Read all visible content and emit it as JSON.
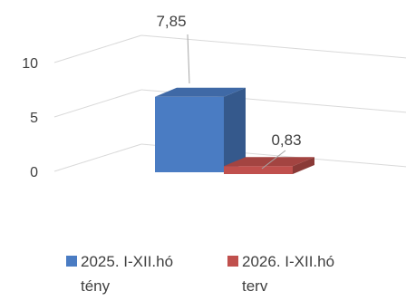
{
  "chart_data": {
    "type": "bar",
    "style": "3d-clustered-column",
    "title": "",
    "ylim": [
      0,
      10
    ],
    "y_ticks": [
      "0",
      "5",
      "10"
    ],
    "grid": true,
    "legend_position": "bottom",
    "categories": [
      ""
    ],
    "series": [
      {
        "name_lines": [
          "2025. I-XII.hó",
          "tény"
        ],
        "values": [
          7.85
        ],
        "data_labels": [
          "7,85"
        ],
        "color": "#4A7CC3"
      },
      {
        "name_lines": [
          "2026. I-XII.hó",
          "terv"
        ],
        "values": [
          0.83
        ],
        "data_labels": [
          "0,83"
        ],
        "color": "#C0504D"
      }
    ]
  }
}
